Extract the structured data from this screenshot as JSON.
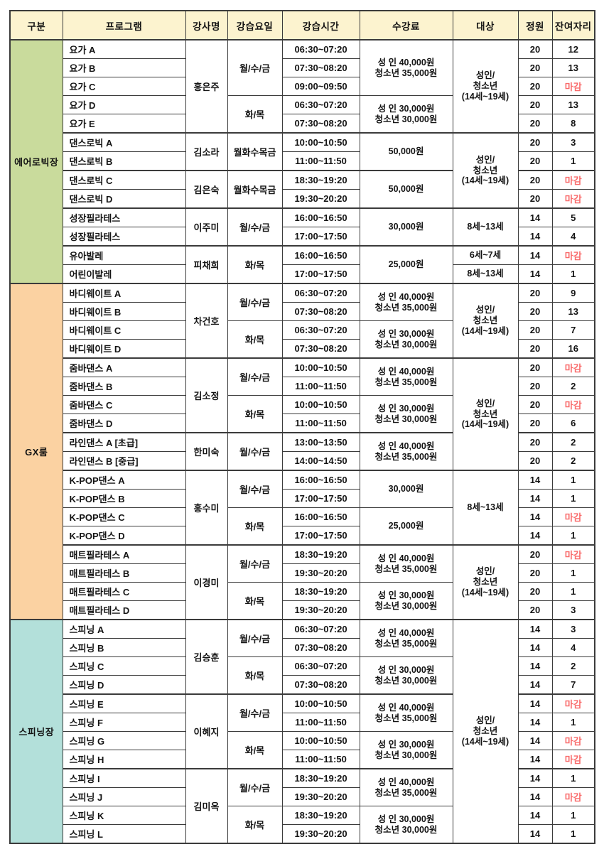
{
  "table": {
    "colors": {
      "border": "#3b3b3b",
      "header_bg": "#fcf3cf",
      "closed_text": "#f96b6b",
      "aerobic_bg": "#c9db9c",
      "gx_bg": "#fbd2a2",
      "spinning_bg": "#b3e0da"
    },
    "headers": {
      "category": "구분",
      "program": "프로그램",
      "instructor": "강사명",
      "days": "강습요일",
      "time": "강습시간",
      "fee": "수강료",
      "target": "대상",
      "capacity": "정원",
      "remaining": "잔여자리"
    },
    "closed_label": "마감",
    "sections": [
      {
        "label": "에어로빅장",
        "bg": "#c9db9c",
        "rows": [
          {
            "group": true,
            "program": "요가 A",
            "instructor": {
              "text": "홍은주",
              "span": 5
            },
            "days": {
              "text": "월/수/금",
              "span": 3
            },
            "time": "06:30~07:20",
            "fee": {
              "text": "성 인 40,000원\n청소년 35,000원",
              "span": 3
            },
            "target": {
              "text": "성인/\n청소년\n(14세~19세)",
              "span": 5
            },
            "capacity": "20",
            "remaining": "12"
          },
          {
            "program": "요가 B",
            "time": "07:30~08:20",
            "capacity": "20",
            "remaining": "13"
          },
          {
            "program": "요가 C",
            "time": "09:00~09:50",
            "capacity": "20",
            "remaining": "마감",
            "closed": true
          },
          {
            "program": "요가 D",
            "days": {
              "text": "화/목",
              "span": 2
            },
            "time": "06:30~07:20",
            "fee": {
              "text": "성 인 30,000원\n청소년 30,000원",
              "span": 2
            },
            "capacity": "20",
            "remaining": "13"
          },
          {
            "program": "요가 E",
            "time": "07:30~08:20",
            "capacity": "20",
            "remaining": "8"
          },
          {
            "group": true,
            "program": "댄스로빅 A",
            "instructor": {
              "text": "김소라",
              "span": 2
            },
            "days": {
              "text": "월화수목금",
              "span": 2
            },
            "time": "10:00~10:50",
            "fee": {
              "text": "50,000원",
              "span": 2
            },
            "target": {
              "text": "성인/\n청소년\n(14세~19세)",
              "span": 4
            },
            "capacity": "20",
            "remaining": "3"
          },
          {
            "program": "댄스로빅 B",
            "time": "11:00~11:50",
            "capacity": "20",
            "remaining": "1"
          },
          {
            "group": true,
            "program": "댄스로빅 C",
            "instructor": {
              "text": "김은숙",
              "span": 2
            },
            "days": {
              "text": "월화수목금",
              "span": 2
            },
            "time": "18:30~19:20",
            "fee": {
              "text": "50,000원",
              "span": 2
            },
            "capacity": "20",
            "remaining": "마감",
            "closed": true
          },
          {
            "program": "댄스로빅 D",
            "time": "19:30~20:20",
            "capacity": "20",
            "remaining": "마감",
            "closed": true
          },
          {
            "group": true,
            "program": "성장필라테스",
            "instructor": {
              "text": "이주미",
              "span": 2
            },
            "days": {
              "text": "월/수/금",
              "span": 2
            },
            "time": "16:00~16:50",
            "fee": {
              "text": "30,000원",
              "span": 2
            },
            "target": {
              "text": "8세~13세",
              "span": 2
            },
            "capacity": "14",
            "remaining": "5"
          },
          {
            "program": "성장필라테스",
            "time": "17:00~17:50",
            "capacity": "14",
            "remaining": "4"
          },
          {
            "group": true,
            "program": "유아발레",
            "instructor": {
              "text": "피채희",
              "span": 2
            },
            "days": {
              "text": "화/목",
              "span": 2
            },
            "time": "16:00~16:50",
            "fee": {
              "text": "25,000원",
              "span": 2
            },
            "target": {
              "text": "6세~7세",
              "span": 1
            },
            "capacity": "14",
            "remaining": "마감",
            "closed": true
          },
          {
            "program": "어린이발레",
            "time": "17:00~17:50",
            "target": {
              "text": "8세~13세",
              "span": 1
            },
            "capacity": "14",
            "remaining": "1"
          }
        ]
      },
      {
        "label": "GX룸",
        "bg": "#fbd2a2",
        "rows": [
          {
            "group": true,
            "program": "바디웨이트 A",
            "instructor": {
              "text": "차건호",
              "span": 4
            },
            "days": {
              "text": "월/수/금",
              "span": 2
            },
            "time": "06:30~07:20",
            "fee": {
              "text": "성 인 40,000원\n청소년 35,000원",
              "span": 2
            },
            "target": {
              "text": "성인/\n청소년\n(14세~19세)",
              "span": 4
            },
            "capacity": "20",
            "remaining": "9"
          },
          {
            "program": "바디웨이트 B",
            "time": "07:30~08:20",
            "capacity": "20",
            "remaining": "13"
          },
          {
            "program": "바디웨이트 C",
            "days": {
              "text": "화/목",
              "span": 2
            },
            "time": "06:30~07:20",
            "fee": {
              "text": "성 인 30,000원\n청소년 30,000원",
              "span": 2
            },
            "capacity": "20",
            "remaining": "7"
          },
          {
            "program": "바디웨이트 D",
            "time": "07:30~08:20",
            "capacity": "20",
            "remaining": "16"
          },
          {
            "group": true,
            "program": "줌바댄스 A",
            "instructor": {
              "text": "김소정",
              "span": 4
            },
            "days": {
              "text": "월/수/금",
              "span": 2
            },
            "time": "10:00~10:50",
            "fee": {
              "text": "성 인 40,000원\n청소년 35,000원",
              "span": 2
            },
            "target": {
              "text": "성인/\n청소년\n(14세~19세)",
              "span": 6
            },
            "capacity": "20",
            "remaining": "마감",
            "closed": true
          },
          {
            "program": "줌바댄스 B",
            "time": "11:00~11:50",
            "capacity": "20",
            "remaining": "2"
          },
          {
            "program": "줌바댄스 C",
            "days": {
              "text": "화/목",
              "span": 2
            },
            "time": "10:00~10:50",
            "fee": {
              "text": "성 인 30,000원\n청소년 30,000원",
              "span": 2
            },
            "capacity": "20",
            "remaining": "마감",
            "closed": true
          },
          {
            "program": "줌바댄스 D",
            "time": "11:00~11:50",
            "capacity": "20",
            "remaining": "6"
          },
          {
            "group": true,
            "program": "라인댄스 A [초급]",
            "instructor": {
              "text": "한미숙",
              "span": 2
            },
            "days": {
              "text": "월/수/금",
              "span": 2
            },
            "time": "13:00~13:50",
            "fee": {
              "text": "성 인 40,000원\n청소년 35,000원",
              "span": 2
            },
            "capacity": "20",
            "remaining": "2"
          },
          {
            "program": "라인댄스 B [중급]",
            "time": "14:00~14:50",
            "capacity": "20",
            "remaining": "2"
          },
          {
            "group": true,
            "program": "K-POP댄스 A",
            "instructor": {
              "text": "홍수미",
              "span": 4
            },
            "days": {
              "text": "월/수/금",
              "span": 2
            },
            "time": "16:00~16:50",
            "fee": {
              "text": "30,000원",
              "span": 2
            },
            "target": {
              "text": "8세~13세",
              "span": 4
            },
            "capacity": "14",
            "remaining": "1"
          },
          {
            "program": "K-POP댄스 B",
            "time": "17:00~17:50",
            "capacity": "14",
            "remaining": "1"
          },
          {
            "program": "K-POP댄스 C",
            "days": {
              "text": "화/목",
              "span": 2
            },
            "time": "16:00~16:50",
            "fee": {
              "text": "25,000원",
              "span": 2
            },
            "capacity": "14",
            "remaining": "마감",
            "closed": true
          },
          {
            "program": "K-POP댄스 D",
            "time": "17:00~17:50",
            "capacity": "14",
            "remaining": "1"
          },
          {
            "group": true,
            "program": "매트필라테스 A",
            "instructor": {
              "text": "이경미",
              "span": 4
            },
            "days": {
              "text": "월/수/금",
              "span": 2
            },
            "time": "18:30~19:20",
            "fee": {
              "text": "성 인 40,000원\n청소년 35,000원",
              "span": 2
            },
            "target": {
              "text": "성인/\n청소년\n(14세~19세)",
              "span": 4
            },
            "capacity": "20",
            "remaining": "마감",
            "closed": true
          },
          {
            "program": "매트필라테스 B",
            "time": "19:30~20:20",
            "capacity": "20",
            "remaining": "1"
          },
          {
            "program": "매트필라테스 C",
            "days": {
              "text": "화/목",
              "span": 2
            },
            "time": "18:30~19:20",
            "fee": {
              "text": "성 인 30,000원\n청소년 30,000원",
              "span": 2
            },
            "capacity": "20",
            "remaining": "1"
          },
          {
            "program": "매트필라테스 D",
            "time": "19:30~20:20",
            "capacity": "20",
            "remaining": "3"
          }
        ]
      },
      {
        "label": "스피닝장",
        "bg": "#b3e0da",
        "rows": [
          {
            "group": true,
            "program": "스피닝 A",
            "instructor": {
              "text": "김승훈",
              "span": 4
            },
            "days": {
              "text": "월/수/금",
              "span": 2
            },
            "time": "06:30~07:20",
            "fee": {
              "text": "성 인 40,000원\n청소년 35,000원",
              "span": 2
            },
            "target": {
              "text": "성인/\n청소년\n(14세~19세)",
              "span": 12
            },
            "capacity": "14",
            "remaining": "3"
          },
          {
            "program": "스피닝 B",
            "time": "07:30~08:20",
            "capacity": "14",
            "remaining": "4"
          },
          {
            "program": "스피닝 C",
            "days": {
              "text": "화/목",
              "span": 2
            },
            "time": "06:30~07:20",
            "fee": {
              "text": "성 인 30,000원\n청소년 30,000원",
              "span": 2
            },
            "capacity": "14",
            "remaining": "2"
          },
          {
            "program": "스피닝 D",
            "time": "07:30~08:20",
            "capacity": "14",
            "remaining": "7"
          },
          {
            "group": true,
            "program": "스피닝 E",
            "instructor": {
              "text": "이혜지",
              "span": 4
            },
            "days": {
              "text": "월/수/금",
              "span": 2
            },
            "time": "10:00~10:50",
            "fee": {
              "text": "성 인 40,000원\n청소년 35,000원",
              "span": 2
            },
            "capacity": "14",
            "remaining": "마감",
            "closed": true
          },
          {
            "program": "스피닝 F",
            "time": "11:00~11:50",
            "capacity": "14",
            "remaining": "1"
          },
          {
            "program": "스피닝 G",
            "days": {
              "text": "화/목",
              "span": 2
            },
            "time": "10:00~10:50",
            "fee": {
              "text": "성 인 30,000원\n청소년 30,000원",
              "span": 2
            },
            "capacity": "14",
            "remaining": "마감",
            "closed": true
          },
          {
            "program": "스피닝 H",
            "time": "11:00~11:50",
            "capacity": "14",
            "remaining": "마감",
            "closed": true
          },
          {
            "group": true,
            "program": "스피닝 I",
            "instructor": {
              "text": "김미옥",
              "span": 4
            },
            "days": {
              "text": "월/수/금",
              "span": 2
            },
            "time": "18:30~19:20",
            "fee": {
              "text": "성 인 40,000원\n청소년 35,000원",
              "span": 2
            },
            "capacity": "14",
            "remaining": "1"
          },
          {
            "program": "스피닝 J",
            "time": "19:30~20:20",
            "capacity": "14",
            "remaining": "마감",
            "closed": true
          },
          {
            "program": "스피닝 K",
            "days": {
              "text": "화/목",
              "span": 2
            },
            "time": "18:30~19:20",
            "fee": {
              "text": "성 인 30,000원\n청소년 30,000원",
              "span": 2
            },
            "capacity": "14",
            "remaining": "1"
          },
          {
            "program": "스피닝 L",
            "time": "19:30~20:20",
            "capacity": "14",
            "remaining": "1"
          }
        ]
      }
    ]
  }
}
